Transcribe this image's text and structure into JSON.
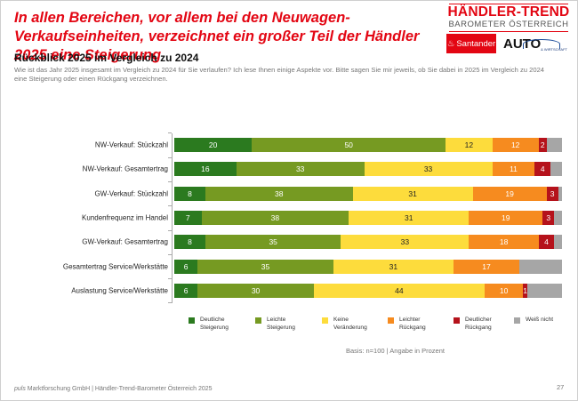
{
  "header": {
    "title": "In allen Bereichen, vor allem bei den Neuwagen-Verkaufseinheiten, verzeichnet ein großer Teil der Händler 2025 eine Steigerung",
    "subtitle": "Rückblick 2025 im Vergleich zu 2024",
    "question": "Wie ist das Jahr 2025 insgesamt im Vergleich zu 2024 für Sie verlaufen? Ich lese Ihnen einige Aspekte vor. Bitte sagen Sie mir jeweils, ob Sie dabei in 2025 im Vergleich zu 2024 eine Steigerung oder einen Rückgang verzeichnen."
  },
  "logo": {
    "title": "HÄNDLER-TREND",
    "subtitle": "BAROMETER ÖSTERREICH",
    "sponsor1": "Santander",
    "sponsor2": "AUTO",
    "sponsor2_sub": "& WIRTSCHAFT"
  },
  "chart_data": {
    "type": "bar",
    "orientation": "horizontal-stacked-100",
    "title": "Rückblick 2025 im Vergleich zu 2024",
    "xlabel": "",
    "ylabel": "",
    "xlim": [
      0,
      100
    ],
    "grid": false,
    "legend_position": "bottom",
    "categories": [
      "NW-Verkauf: Stückzahl",
      "NW-Verkauf: Gesamtertrag",
      "GW-Verkauf: Stückzahl",
      "Kundenfrequenz im Handel",
      "GW-Verkauf: Gesamtertrag",
      "Gesamtertrag Service/Werkstätte",
      "Auslastung Service/Werkstätte"
    ],
    "series": [
      {
        "name": "Deutliche\nSteigerung",
        "color": "#2b7a1f",
        "text_color": "#ffffff",
        "values": [
          20,
          16,
          8,
          7,
          8,
          6,
          6
        ]
      },
      {
        "name": "Leichte\nSteigerung",
        "color": "#769a22",
        "text_color": "#ffffff",
        "values": [
          50,
          33,
          38,
          38,
          35,
          35,
          30
        ]
      },
      {
        "name": "Keine\nVeränderung",
        "color": "#fddc3c",
        "text_color": "#222222",
        "values": [
          12,
          33,
          31,
          31,
          33,
          31,
          44
        ]
      },
      {
        "name": "Leichter\nRückgang",
        "color": "#f68b1f",
        "text_color": "#ffffff",
        "values": [
          12,
          11,
          19,
          19,
          18,
          17,
          10
        ]
      },
      {
        "name": "Deutlicher\nRückgang",
        "color": "#b5121b",
        "text_color": "#ffffff",
        "values": [
          2,
          4,
          3,
          3,
          4,
          0,
          1
        ]
      },
      {
        "name": "Weiß nicht",
        "color": "#a6a6a6",
        "text_color": "#ffffff",
        "values": [
          4,
          3,
          1,
          2,
          2,
          11,
          9
        ],
        "labels_shown": false
      }
    ]
  },
  "basis": "Basis: n=100 | Angabe in Prozent",
  "footer": {
    "company_italic": "puls",
    "text": " Marktforschung GmbH | Händler-Trend-Barometer Österreich 2025",
    "page": "27"
  }
}
